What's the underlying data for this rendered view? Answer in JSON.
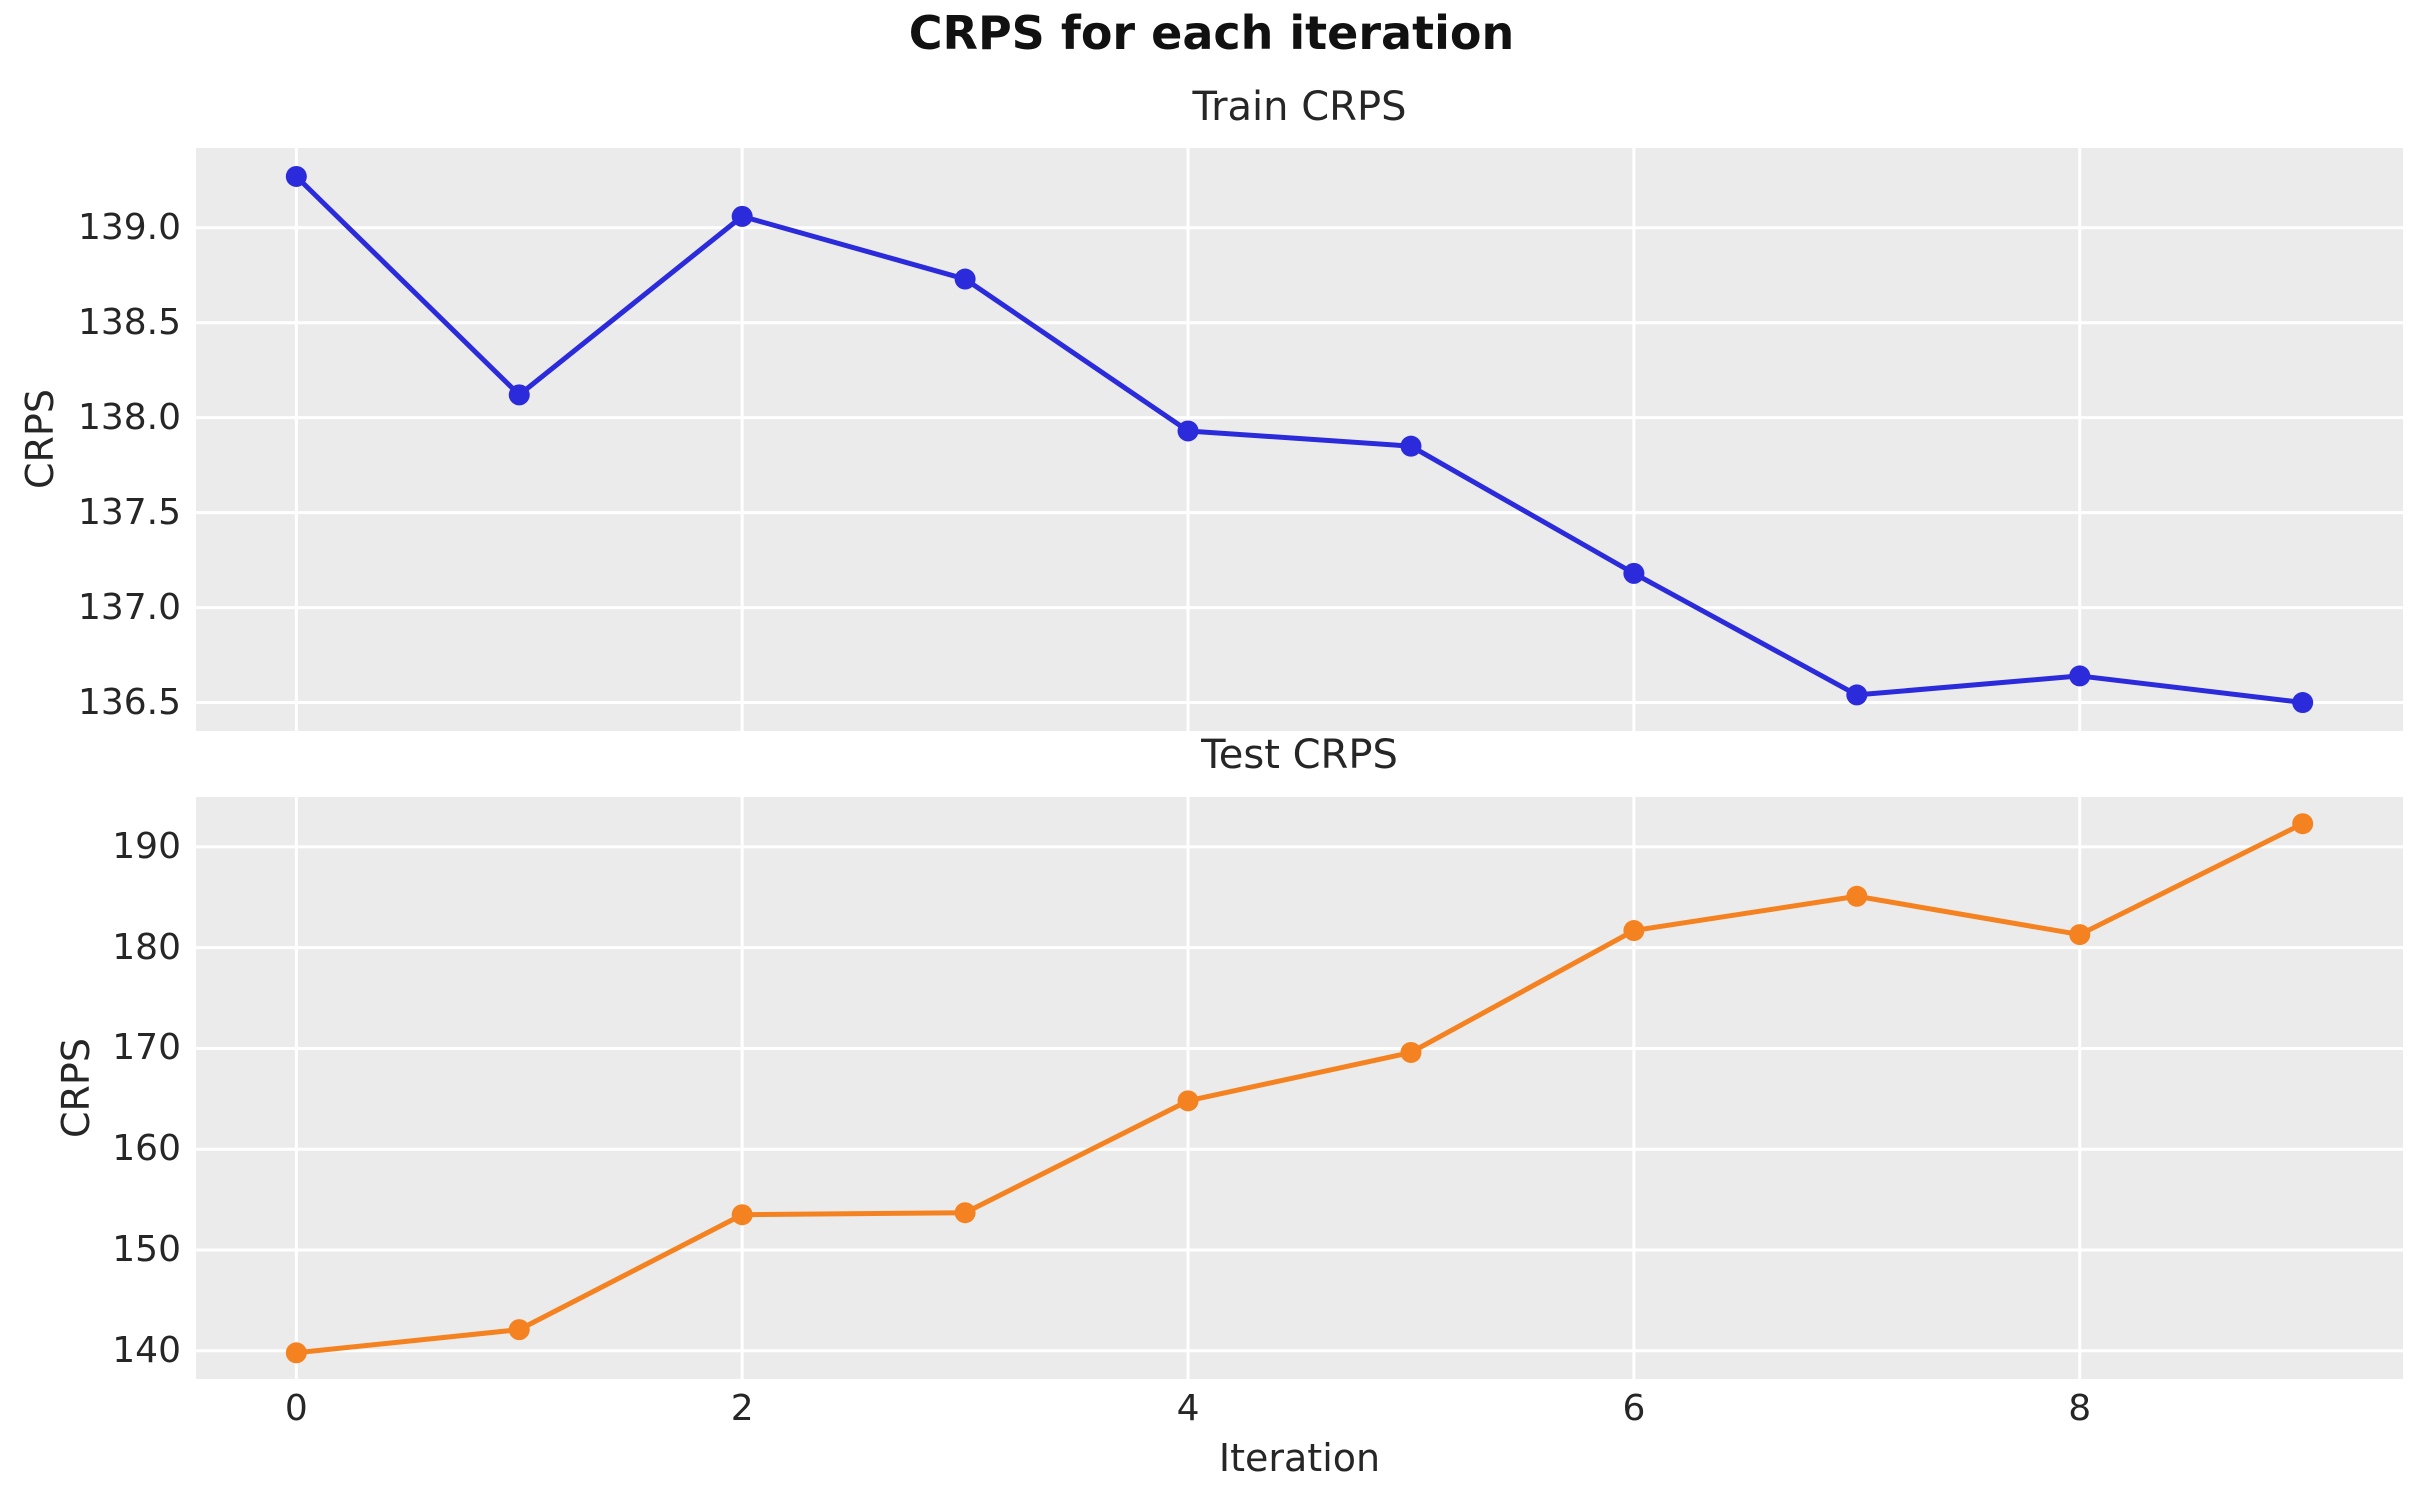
{
  "figure": {
    "title": "CRPS for each iteration",
    "xlabel": "Iteration",
    "background_color": "#ffffff",
    "panel_background_color": "#ebebeb",
    "grid_color": "#ffffff",
    "text_color": "#262626",
    "title_color": "#111111"
  },
  "chart_data": [
    {
      "type": "line",
      "title": "Train CRPS",
      "ylabel": "CRPS",
      "xlabel": "",
      "grid": true,
      "legend": false,
      "line_color": "#2b2bdb",
      "marker": "o",
      "x": [
        0,
        1,
        2,
        3,
        4,
        5,
        6,
        7,
        8,
        9
      ],
      "values": [
        139.27,
        138.12,
        139.06,
        138.73,
        137.93,
        137.85,
        137.18,
        136.54,
        136.64,
        136.5
      ],
      "xlim": [
        -0.45,
        9.45
      ],
      "ylim": [
        136.35,
        139.42
      ],
      "xticks": [
        0,
        2,
        4,
        6,
        8
      ],
      "xtick_labels": [],
      "yticks": [
        136.5,
        137.0,
        137.5,
        138.0,
        138.5,
        139.0
      ],
      "ytick_labels": [
        "136.5",
        "137.0",
        "137.5",
        "138.0",
        "138.5",
        "139.0"
      ]
    },
    {
      "type": "line",
      "title": "Test CRPS",
      "ylabel": "CRPS",
      "xlabel": "Iteration",
      "grid": true,
      "legend": false,
      "line_color": "#f58220",
      "marker": "o",
      "x": [
        0,
        1,
        2,
        3,
        4,
        5,
        6,
        7,
        8,
        9
      ],
      "values": [
        139.8,
        142.1,
        153.5,
        153.7,
        164.8,
        169.6,
        181.7,
        185.1,
        181.3,
        192.3
      ],
      "xlim": [
        -0.45,
        9.45
      ],
      "ylim": [
        137.2,
        194.95
      ],
      "xticks": [
        0,
        2,
        4,
        6,
        8
      ],
      "xtick_labels": [
        "0",
        "2",
        "4",
        "6",
        "8"
      ],
      "yticks": [
        140,
        150,
        160,
        170,
        180,
        190
      ],
      "ytick_labels": [
        "140",
        "150",
        "160",
        "170",
        "180",
        "190"
      ]
    }
  ]
}
